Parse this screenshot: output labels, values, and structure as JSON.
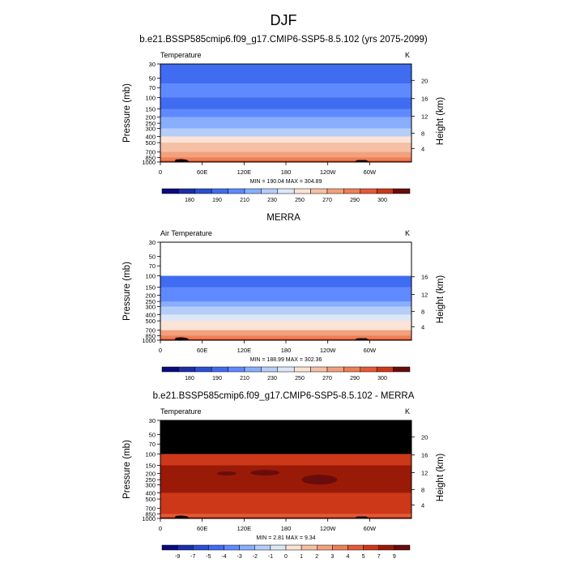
{
  "page": {
    "title": "DJF"
  },
  "panels": [
    {
      "heading": "b.e21.BSSP585cmip6.f09_g17.CMIP6-SSP5-8.5.102 (yrs 2075-2099)",
      "left_label": "Temperature",
      "right_label": "K",
      "ylabel": "Pressure (mb)",
      "y2label": "Height (km)",
      "stats": "MIN = 190.04  MAX = 304.89"
    },
    {
      "heading": "MERRA",
      "left_label": "Air Temperature",
      "right_label": "K",
      "ylabel": "Pressure (mb)",
      "y2label": "Height (km)",
      "stats": "MIN = 188.99  MAX = 302.36"
    },
    {
      "heading": "b.e21.BSSP585cmip6.f09_g17.CMIP6-SSP5-8.5.102 - MERRA",
      "left_label": "Temperature",
      "right_label": "K",
      "ylabel": "Pressure (mb)",
      "y2label": "Height (km)",
      "stats": "MIN =  2.81  MAX =  9.34"
    }
  ],
  "chart_data": [
    {
      "type": "heatmap",
      "subtype": "filled-contour latitude-pressure cross section",
      "title": "b.e21.BSSP585cmip6.f09_g17.CMIP6-SSP5-8.5.102 (yrs 2075-2099)",
      "left_label": "Temperature",
      "units": "K",
      "xlabel": "",
      "ylabel": "Pressure (mb)",
      "y2label": "Height (km)",
      "x_ticks": [
        "0",
        "60E",
        "120E",
        "180",
        "120W",
        "60W"
      ],
      "x_tick_values": [
        0,
        60,
        120,
        180,
        240,
        300
      ],
      "xlim": [
        0,
        360
      ],
      "y_scale": "log",
      "y_reversed": true,
      "y_ticks": [
        30,
        50,
        70,
        100,
        150,
        200,
        250,
        300,
        400,
        500,
        700,
        850,
        1000
      ],
      "ylim": [
        1000,
        30
      ],
      "y2_ticks": [
        4,
        8,
        12,
        16,
        20
      ],
      "y2_tick_pressures": [
        616.4,
        356.0,
        194.0,
        103.5,
        54.0
      ],
      "stats": {
        "min": 190.04,
        "max": 304.89
      },
      "colorbar": {
        "levels": [
          180,
          190,
          200,
          210,
          220,
          230,
          240,
          250,
          260,
          270,
          280,
          290,
          300
        ],
        "labels": [
          "180",
          "190",
          "210",
          "230",
          "250",
          "270",
          "290",
          "300"
        ],
        "colors": [
          "#0a0a80",
          "#1c2ea8",
          "#2a4fd2",
          "#3f6cf0",
          "#5f8aff",
          "#88aefc",
          "#b5cdf7",
          "#dce8f7",
          "#fbe3d5",
          "#f6c0a6",
          "#f2a07d",
          "#ee7f55",
          "#e45a35",
          "#cc3818",
          "#6a0c0c"
        ]
      },
      "profile": [
        {
          "p": 30,
          "value": 205
        },
        {
          "p": 60,
          "value": 210
        },
        {
          "p": 100,
          "value": 208
        },
        {
          "p": 150,
          "value": 215
        },
        {
          "p": 200,
          "value": 220
        },
        {
          "p": 250,
          "value": 228
        },
        {
          "p": 300,
          "value": 236
        },
        {
          "p": 400,
          "value": 250
        },
        {
          "p": 500,
          "value": 262
        },
        {
          "p": 700,
          "value": 278
        },
        {
          "p": 850,
          "value": 285
        },
        {
          "p": 1000,
          "value": 292
        }
      ],
      "missing_above_p": null
    },
    {
      "type": "heatmap",
      "subtype": "filled-contour latitude-pressure cross section",
      "title": "MERRA",
      "left_label": "Air Temperature",
      "units": "K",
      "xlabel": "",
      "ylabel": "Pressure (mb)",
      "y2label": "Height (km)",
      "x_ticks": [
        "0",
        "60E",
        "120E",
        "180",
        "120W",
        "60W"
      ],
      "x_tick_values": [
        0,
        60,
        120,
        180,
        240,
        300
      ],
      "xlim": [
        0,
        360
      ],
      "y_scale": "log",
      "y_reversed": true,
      "y_ticks": [
        30,
        50,
        70,
        100,
        150,
        200,
        250,
        300,
        400,
        500,
        700,
        850,
        1000
      ],
      "ylim": [
        1000,
        30
      ],
      "y2_ticks": [
        4,
        8,
        12,
        16
      ],
      "y2_tick_pressures": [
        616.4,
        356.0,
        194.0,
        103.5
      ],
      "stats": {
        "min": 188.99,
        "max": 302.36
      },
      "colorbar": {
        "levels": [
          180,
          190,
          200,
          210,
          220,
          230,
          240,
          250,
          260,
          270,
          280,
          290,
          300
        ],
        "labels": [
          "180",
          "190",
          "210",
          "230",
          "250",
          "270",
          "290",
          "300"
        ],
        "colors": [
          "#0a0a80",
          "#1c2ea8",
          "#2a4fd2",
          "#3f6cf0",
          "#5f8aff",
          "#88aefc",
          "#b5cdf7",
          "#dce8f7",
          "#fbe3d5",
          "#f6c0a6",
          "#f2a07d",
          "#ee7f55",
          "#e45a35",
          "#cc3818",
          "#6a0c0c"
        ]
      },
      "profile": [
        {
          "p": 100,
          "value": 200
        },
        {
          "p": 150,
          "value": 212
        },
        {
          "p": 200,
          "value": 218
        },
        {
          "p": 250,
          "value": 226
        },
        {
          "p": 300,
          "value": 234
        },
        {
          "p": 400,
          "value": 247
        },
        {
          "p": 500,
          "value": 259
        },
        {
          "p": 700,
          "value": 275
        },
        {
          "p": 850,
          "value": 282
        },
        {
          "p": 1000,
          "value": 289
        }
      ],
      "missing_above_p": 100,
      "missing_color": "#ffffff"
    },
    {
      "type": "heatmap",
      "subtype": "filled-contour latitude-pressure cross section (difference)",
      "title": "b.e21.BSSP585cmip6.f09_g17.CMIP6-SSP5-8.5.102 - MERRA",
      "left_label": "Temperature",
      "units": "K",
      "xlabel": "",
      "ylabel": "Pressure (mb)",
      "y2label": "Height (km)",
      "x_ticks": [
        "0",
        "60E",
        "120E",
        "180",
        "120W",
        "60W"
      ],
      "x_tick_values": [
        0,
        60,
        120,
        180,
        240,
        300
      ],
      "xlim": [
        0,
        360
      ],
      "y_scale": "log",
      "y_reversed": true,
      "y_ticks": [
        30,
        50,
        70,
        100,
        150,
        200,
        250,
        300,
        400,
        500,
        700,
        850,
        1000
      ],
      "ylim": [
        1000,
        30
      ],
      "y2_ticks": [
        4,
        8,
        12,
        16,
        20
      ],
      "y2_tick_pressures": [
        616.4,
        356.0,
        194.0,
        103.5,
        54.0
      ],
      "stats": {
        "min": 2.81,
        "max": 9.34
      },
      "colorbar": {
        "levels": [
          -9,
          -7,
          -5,
          -4,
          -3,
          -2,
          -1,
          0,
          1,
          2,
          3,
          4,
          5,
          7,
          9
        ],
        "labels": [
          "-9",
          "-7",
          "-5",
          "-4",
          "-3",
          "-2",
          "-1",
          "0",
          "1",
          "2",
          "3",
          "4",
          "5",
          "7",
          "9"
        ],
        "colors": [
          "#0a0a80",
          "#1c2ea8",
          "#2a4fd2",
          "#3f6cf0",
          "#5f8aff",
          "#88aefc",
          "#b5cdf7",
          "#dce8f7",
          "#fbe3d5",
          "#f6c0a6",
          "#f2a07d",
          "#ee7f55",
          "#e45a35",
          "#cc3818",
          "#9a1a08",
          "#6a0c0c"
        ]
      },
      "profile": [
        {
          "p": 100,
          "value": 6.0
        },
        {
          "p": 150,
          "value": 7.5
        },
        {
          "p": 200,
          "value": 7.6
        },
        {
          "p": 250,
          "value": 7.6
        },
        {
          "p": 300,
          "value": 7.4
        },
        {
          "p": 400,
          "value": 6.2
        },
        {
          "p": 500,
          "value": 5.5
        },
        {
          "p": 700,
          "value": 5.2
        },
        {
          "p": 850,
          "value": 4.6
        },
        {
          "p": 1000,
          "value": 4.2
        }
      ],
      "missing_above_p": 100,
      "missing_color": "#000000"
    }
  ]
}
